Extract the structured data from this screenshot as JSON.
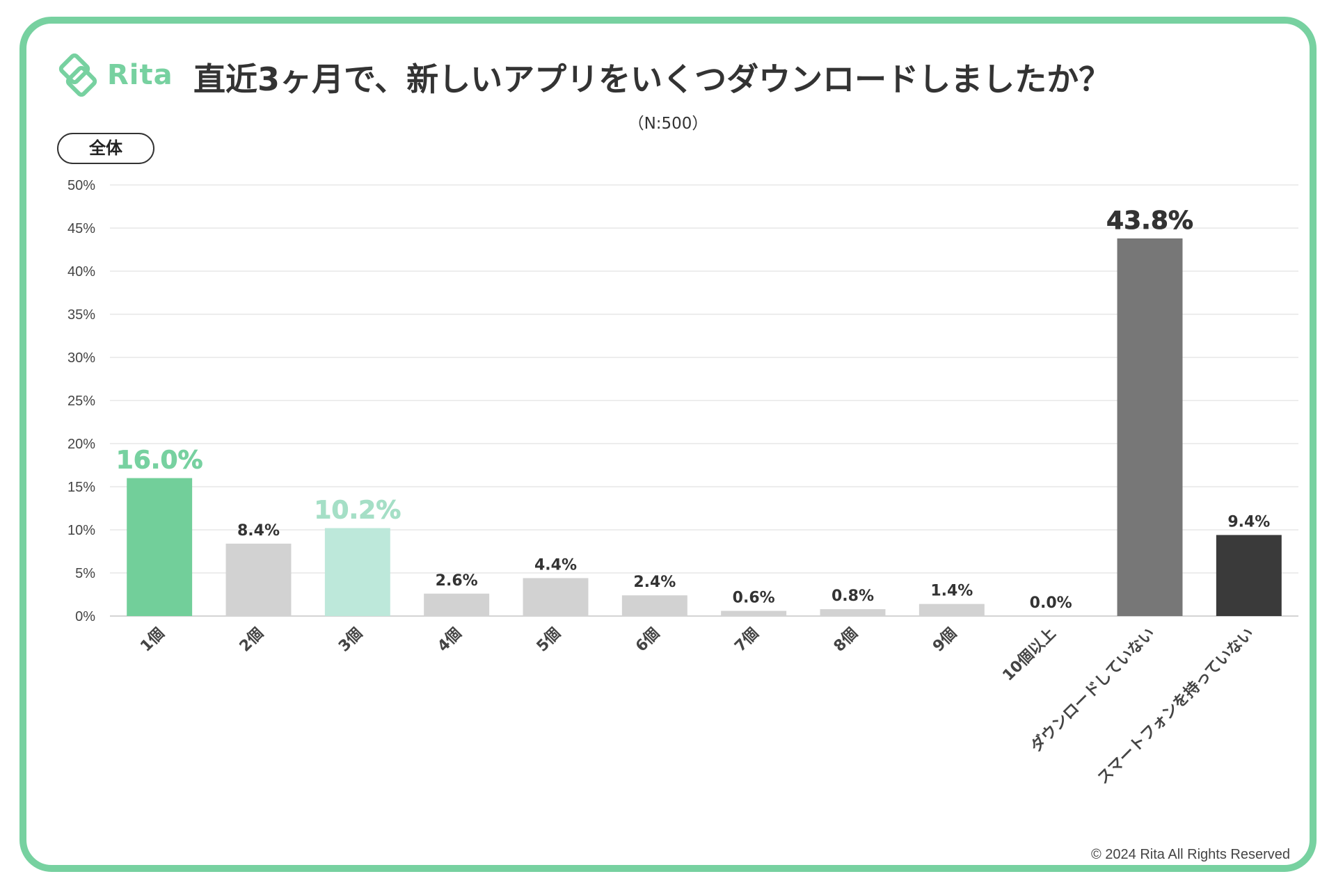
{
  "brand": {
    "name": "Rita",
    "color": "#77d1a0"
  },
  "header": {
    "title": "直近3ヶ月で、新しいアプリをいくつダウンロードしましたか？",
    "subtitle": "（N:500）",
    "segment_label": "全体"
  },
  "footer": {
    "copyright": "© 2024 Rita All Rights Reserved"
  },
  "chart_data": {
    "type": "bar",
    "title": "直近3ヶ月で、新しいアプリをいくつダウンロードしましたか？",
    "categories": [
      "1個",
      "2個",
      "3個",
      "4個",
      "5個",
      "6個",
      "7個",
      "8個",
      "9個",
      "10個以上",
      "ダウンロードしていない",
      "スマートフォンを持っていない"
    ],
    "values": [
      16.0,
      8.4,
      10.2,
      2.6,
      4.4,
      2.4,
      0.6,
      0.8,
      1.4,
      0.0,
      43.8,
      9.4
    ],
    "data_labels": [
      "16.0%",
      "8.4%",
      "10.2%",
      "2.6%",
      "4.4%",
      "2.4%",
      "0.6%",
      "0.8%",
      "1.4%",
      "0.0%",
      "43.8%",
      "9.4%"
    ],
    "bar_colors": [
      "#72cf9a",
      "#d2d2d2",
      "#bde8da",
      "#d2d2d2",
      "#d2d2d2",
      "#d2d2d2",
      "#d2d2d2",
      "#d2d2d2",
      "#d2d2d2",
      "#d2d2d2",
      "#777777",
      "#3a3a3a"
    ],
    "label_colors": [
      "#77d1a0",
      "#333333",
      "#a5dfc6",
      "#333333",
      "#333333",
      "#333333",
      "#333333",
      "#333333",
      "#333333",
      "#333333",
      "#333333",
      "#333333"
    ],
    "highlight_labels": [
      0,
      2,
      10
    ],
    "ylim": [
      0,
      50
    ],
    "yticks": [
      0,
      5,
      10,
      15,
      20,
      25,
      30,
      35,
      40,
      45,
      50
    ],
    "ytick_labels": [
      "0%",
      "5%",
      "10%",
      "15%",
      "20%",
      "25%",
      "30%",
      "35%",
      "40%",
      "45%",
      "50%"
    ],
    "grid": true,
    "xlabel": "",
    "ylabel": ""
  }
}
